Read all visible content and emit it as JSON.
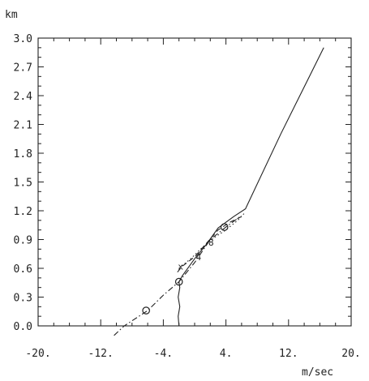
{
  "chart_data": {
    "type": "line",
    "ylabel": "km",
    "xlabel": "m/sec",
    "xlim": [
      -20,
      20
    ],
    "ylim": [
      0.0,
      3.0
    ],
    "x_ticks": [
      -20,
      -12,
      -4,
      4,
      12,
      20
    ],
    "x_tick_labels": [
      "-20.",
      "-12.",
      "-4.",
      "4.",
      "12.",
      "20."
    ],
    "y_ticks": [
      0.0,
      0.3,
      0.6,
      0.9,
      1.2,
      1.5,
      1.8,
      2.1,
      2.4,
      2.7,
      3.0
    ],
    "y_tick_labels": [
      "0.0",
      "0.3",
      "0.6",
      "0.9",
      "1.2",
      "1.5",
      "1.8",
      "2.1",
      "2.4",
      "2.7",
      "3.0"
    ],
    "grid": false,
    "series": [
      {
        "style": "solid",
        "points": [
          [
            -2.0,
            0.0
          ],
          [
            -2.1,
            0.1
          ],
          [
            -1.9,
            0.2
          ],
          [
            -2.1,
            0.3
          ],
          [
            -1.9,
            0.4
          ],
          [
            -2.0,
            0.46
          ],
          [
            -1.6,
            0.52
          ],
          [
            0.0,
            0.7
          ],
          [
            1.5,
            0.85
          ],
          [
            3.0,
            1.02
          ],
          [
            5.0,
            1.14
          ],
          [
            6.5,
            1.22
          ],
          [
            11.0,
            2.0
          ],
          [
            16.5,
            2.9
          ]
        ]
      },
      {
        "style": "dashdot",
        "points": [
          [
            -10.3,
            -0.1
          ],
          [
            -9.0,
            0.0
          ],
          [
            -6.0,
            0.16
          ],
          [
            -4.0,
            0.32
          ],
          [
            -2.0,
            0.46
          ],
          [
            0.0,
            0.66
          ],
          [
            2.0,
            0.9
          ],
          [
            4.0,
            1.03
          ],
          [
            6.0,
            1.15
          ]
        ]
      },
      {
        "style": "dashed",
        "points": [
          [
            -2.2,
            0.56
          ],
          [
            -1.6,
            0.62
          ],
          [
            0.0,
            0.72
          ],
          [
            1.5,
            0.86
          ],
          [
            3.0,
            1.0
          ],
          [
            4.5,
            1.08
          ],
          [
            6.0,
            1.14
          ]
        ]
      },
      {
        "style": "dotted",
        "points": [
          [
            -2.0,
            0.6
          ],
          [
            -0.5,
            0.7
          ],
          [
            1.0,
            0.82
          ],
          [
            2.5,
            0.92
          ],
          [
            4.0,
            1.0
          ],
          [
            5.5,
            1.1
          ],
          [
            6.3,
            1.17
          ]
        ]
      }
    ],
    "markers": [
      {
        "x": -6.2,
        "y": 0.16,
        "symbol": "o"
      },
      {
        "x": -2.0,
        "y": 0.46,
        "symbol": "o"
      },
      {
        "x": 3.8,
        "y": 1.03,
        "symbol": "o"
      },
      {
        "x": -1.8,
        "y": 0.62,
        "symbol": "x"
      },
      {
        "x": 0.5,
        "y": 0.72,
        "symbol": "4"
      },
      {
        "x": 2.1,
        "y": 0.87,
        "symbol": "8"
      }
    ]
  }
}
